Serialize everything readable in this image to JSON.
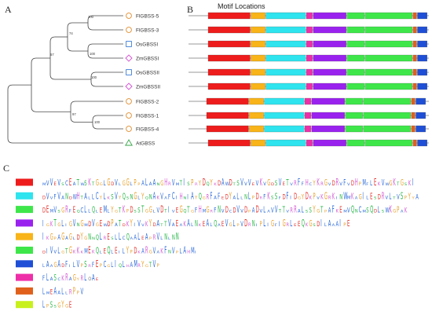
{
  "panels": {
    "a": "A",
    "b": "B",
    "c": "C"
  },
  "motif_title": "Motif Locations",
  "colors": {
    "branch": "#444444",
    "circle": "#e08c2c",
    "square": "#3a7bd5",
    "diamond": "#d352d3",
    "triangle": "#3aa64a",
    "backbone": "#777777",
    "motif_edge": "#555555"
  },
  "genes": [
    {
      "label": "FlGBSS-5",
      "marker": "circle"
    },
    {
      "label": "FlGBSS-3",
      "marker": "circle"
    },
    {
      "label": "OsGBSSI",
      "marker": "square"
    },
    {
      "label": "ZmGBSSI",
      "marker": "diamond"
    },
    {
      "label": "OsGBSSII",
      "marker": "square"
    },
    {
      "label": "ZmGBSSII",
      "marker": "diamond"
    },
    {
      "label": "FlGBSS-2",
      "marker": "circle"
    },
    {
      "label": "FlGBSS-1",
      "marker": "circle"
    },
    {
      "label": "FlGBSS-4",
      "marker": "circle"
    },
    {
      "label": "AtGBSS",
      "marker": "triangle"
    }
  ],
  "bootstrap": [
    "100",
    "74",
    "100",
    "57",
    "100",
    "97",
    "100"
  ],
  "motifs": [
    {
      "id": 1,
      "color": "#ee1c1c",
      "sequence": "MVVEVSCEATWSKTGGLGDVLGGLPPALAANGHRVMTISPRYDQYKDAWDTSVVVEVKVGDSVETVRFFHCYKRGVDRVFVDHPMFLEKVWGKTGSKI"
    },
    {
      "id": 2,
      "color": "#2ee4ee",
      "sequence": "DVVFVANDWHTALLCYLKSVYQSNGLYQNAKVAFCIHNIAYQGRFAFEDYALLNLPDRFKSSFDFIDGYDKPVKGRKINWMKAGILESDRVLTVSPYYA"
    },
    {
      "id": 3,
      "color": "#3ee64a",
      "sequence": "DEMVSGRFEQCLLQLEMLYGTKPDSSTGGLVDTIVEGQTGFHMGRFNVDCDVVDPADVLAVVTTVRRALSSYGTPAFKEMVQNCMSQDLSWKGPAK"
    },
    {
      "id": 4,
      "color": "#9a22ee",
      "sequence": "IGKTGLIGVNGMDVGEWDPATDKYIVVKYDATTVAEAKALNKEALQAEVGLPVDRNIPLIGFIGRLEEQKGSDILAAAIPE"
    },
    {
      "id": 5,
      "color": "#f8b418",
      "sequence": "IKGPAGAGLDYGNNQLRESLLCQAALEAPRVLNLNN"
    },
    {
      "id": 6,
      "color": "#3ee64a",
      "sequence": "DIVVLGTGKKKMEKQLEQLEILYPDKARGVAKFNVPLAHMI"
    },
    {
      "id": 7,
      "color": "#1f4fd6",
      "sequence": "LAAGADFILVPSRFEPCGLIQLHAMRYGTVP"
    },
    {
      "id": 8,
      "color": "#ee2ea8",
      "sequence": "FLASCKRAGYRLOAE"
    },
    {
      "id": 9,
      "color": "#e0601c",
      "sequence": "LMEAALLRPPV"
    },
    {
      "id": 10,
      "color": "#c8f01c",
      "sequence": "LPSSGYGE"
    }
  ],
  "letter_colors": {
    "hydrophobic": "#2a6ad8",
    "polar": "#2ab84a",
    "acidic": "#e0302a",
    "basic": "#d45cd4",
    "special": "#e8a02a",
    "other": "#7a7a7a"
  },
  "gene_motif_layout": [
    {
      "gene": "FlGBSS-5",
      "motifs": [
        [
          1,
          0,
          56
        ],
        [
          5,
          57,
          19
        ],
        [
          2,
          77,
          53
        ],
        [
          8,
          131,
          8
        ],
        [
          4,
          140,
          44
        ],
        [
          6,
          185,
          23
        ],
        [
          3,
          209,
          63
        ],
        [
          9,
          273,
          5
        ],
        [
          7,
          279,
          13
        ]
      ]
    },
    {
      "gene": "FlGBSS-3",
      "motifs": [
        [
          1,
          0,
          56
        ],
        [
          5,
          57,
          19
        ],
        [
          2,
          77,
          53
        ],
        [
          8,
          131,
          8
        ],
        [
          4,
          140,
          44
        ],
        [
          6,
          185,
          23
        ],
        [
          3,
          209,
          63
        ],
        [
          9,
          273,
          5
        ],
        [
          7,
          279,
          13
        ]
      ]
    },
    {
      "gene": "OsGBSSI",
      "motifs": [
        [
          1,
          0,
          56
        ],
        [
          5,
          57,
          19
        ],
        [
          2,
          77,
          53
        ],
        [
          8,
          131,
          8
        ],
        [
          4,
          140,
          44
        ],
        [
          6,
          185,
          23
        ],
        [
          3,
          209,
          63
        ],
        [
          9,
          273,
          5
        ],
        [
          7,
          279,
          13
        ]
      ]
    },
    {
      "gene": "ZmGBSSI",
      "motifs": [
        [
          1,
          0,
          56
        ],
        [
          5,
          57,
          19
        ],
        [
          2,
          77,
          53
        ],
        [
          8,
          131,
          8
        ],
        [
          4,
          140,
          44
        ],
        [
          6,
          185,
          23
        ],
        [
          3,
          209,
          63
        ],
        [
          9,
          273,
          5
        ],
        [
          7,
          279,
          13
        ]
      ]
    },
    {
      "gene": "OsGBSSII",
      "motifs": [
        [
          1,
          0,
          56
        ],
        [
          5,
          57,
          19
        ],
        [
          2,
          77,
          53
        ],
        [
          8,
          131,
          8
        ],
        [
          4,
          140,
          44
        ],
        [
          6,
          185,
          23
        ],
        [
          3,
          209,
          63
        ],
        [
          9,
          273,
          5
        ],
        [
          7,
          279,
          13
        ]
      ]
    },
    {
      "gene": "ZmGBSSII",
      "motifs": [
        [
          1,
          0,
          56
        ],
        [
          5,
          57,
          19
        ],
        [
          2,
          77,
          53
        ],
        [
          8,
          131,
          8
        ],
        [
          4,
          140,
          44
        ],
        [
          6,
          185,
          23
        ],
        [
          3,
          209,
          63
        ],
        [
          9,
          273,
          5
        ],
        [
          7,
          279,
          13
        ]
      ]
    },
    {
      "gene": "FlGBSS-2",
      "motifs": [
        [
          1,
          0,
          56
        ],
        [
          5,
          57,
          19
        ],
        [
          2,
          77,
          53
        ],
        [
          8,
          131,
          8
        ],
        [
          4,
          140,
          44
        ],
        [
          6,
          185,
          23
        ],
        [
          3,
          209,
          63
        ],
        [
          9,
          273,
          5
        ],
        [
          7,
          279,
          13
        ]
      ]
    },
    {
      "gene": "FlGBSS-1",
      "motifs": [
        [
          1,
          0,
          56
        ],
        [
          5,
          57,
          19
        ],
        [
          2,
          77,
          53
        ],
        [
          8,
          131,
          8
        ],
        [
          4,
          140,
          44
        ],
        [
          6,
          185,
          23
        ],
        [
          3,
          209,
          63
        ],
        [
          9,
          273,
          5
        ],
        [
          7,
          279,
          13
        ]
      ]
    },
    {
      "gene": "FlGBSS-4",
      "motifs": [
        [
          1,
          0,
          56
        ],
        [
          5,
          57,
          19
        ],
        [
          2,
          77,
          53
        ],
        [
          8,
          131,
          8
        ],
        [
          4,
          140,
          44
        ],
        [
          6,
          185,
          23
        ],
        [
          3,
          209,
          63
        ],
        [
          9,
          273,
          5
        ],
        [
          7,
          279,
          13
        ]
      ]
    },
    {
      "gene": "AtGBSS",
      "motifs": [
        [
          1,
          0,
          56
        ],
        [
          5,
          57,
          19
        ],
        [
          2,
          77,
          53
        ],
        [
          8,
          131,
          8
        ],
        [
          4,
          140,
          44
        ],
        [
          6,
          185,
          23
        ],
        [
          3,
          209,
          63
        ],
        [
          9,
          273,
          5
        ],
        [
          7,
          279,
          13
        ]
      ]
    }
  ]
}
